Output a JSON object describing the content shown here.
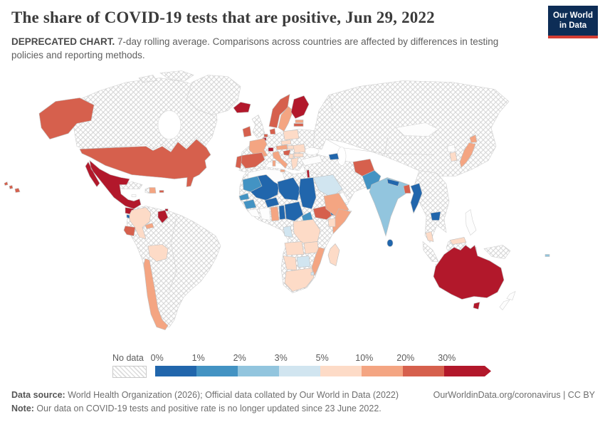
{
  "header": {
    "title": "The share of COVID-19 tests that are positive, Jun 29, 2022",
    "subtitle_bold": "DEPRECATED CHART.",
    "subtitle_rest": " 7-day rolling average. Comparisons across countries are affected by differences in testing policies and reporting methods.",
    "logo": {
      "line1": "Our World",
      "line2": "in Data"
    }
  },
  "legend": {
    "no_data_label": "No data",
    "ticks": [
      "0%",
      "1%",
      "2%",
      "3%",
      "5%",
      "10%",
      "20%",
      "30%"
    ],
    "colors": [
      "#2166ac",
      "#4393c3",
      "#92c5de",
      "#d1e5f0",
      "#fddbc7",
      "#f4a582",
      "#d6604d",
      "#b2182b"
    ]
  },
  "footer": {
    "source_bold": "Data source:",
    "source_rest": " World Health Organization (2026); Official data collated by Our World in Data (2022)",
    "link": "OurWorldinData.org/coronavirus | CC BY",
    "note_bold": "Note:",
    "note_rest": " Our data on COVID-19 tests and positive rate is no longer updated since 23 June 2022."
  },
  "chart_data": {
    "type": "choropleth-map",
    "title": "The share of COVID-19 tests that are positive",
    "date": "Jun 29, 2022",
    "unit": "share of tests positive, 7-day rolling average",
    "legend_position": "bottom",
    "no_data_style": "hatched",
    "buckets": [
      "0-1%",
      "1-2%",
      "2-3%",
      "3-5%",
      "5-10%",
      "10-20%",
      "20-30%",
      ">30%"
    ],
    "values": {
      "united-states": "20-30%",
      "mexico": ">30%",
      "guatemala": ">30%",
      "el-salvador": "0-1%",
      "costa-rica": "20-30%",
      "panama": "10-20%",
      "dominican-republic": "10-20%",
      "puerto-rico": "20-30%",
      "trinidad-and-tobago": ">30%",
      "guyana": ">30%",
      "colombia": "5-10%",
      "ecuador": "20-30%",
      "bolivia": "5-10%",
      "chile": "10-20%",
      "iceland": ">30%",
      "ireland": "20-30%",
      "norway": "20-30%",
      "sweden": "10-20%",
      "finland": ">30%",
      "denmark": "20-30%",
      "estonia": "10-20%",
      "latvia": "20-30%",
      "netherlands": "20-30%",
      "belgium": ">30%",
      "poland": "5-10%",
      "czechia": "5-10%",
      "france": "10-20%",
      "switzerland": ">30%",
      "austria": "10-20%",
      "italy": "10-20%",
      "croatia": "20-30%",
      "hungary": "5-10%",
      "romania": "5-10%",
      "bulgaria": "5-10%",
      "serbia": "5-10%",
      "greece": "5-10%",
      "spain": "20-30%",
      "portugal": "20-30%",
      "israel": ">30%",
      "saudi-arabia": "3-5%",
      "azerbaijan": "0-1%",
      "afghanistan": "20-30%",
      "pakistan": "1-2%",
      "india": "2-3%",
      "nepal": "0-1%",
      "bangladesh": "20-30%",
      "sri-lanka": "0-1%",
      "myanmar": "0-1%",
      "cambodia": "0-1%",
      "malaysia": "5-10%",
      "japan": "10-20%",
      "south-korea": "5-10%",
      "fiji": "2-3%",
      "australia": ">30%",
      "mauritania": "1-2%",
      "senegal": "1-2%",
      "guinea": "1-2%",
      "mali": "0-1%",
      "burkina-faso": "0-1%",
      "niger": "0-1%",
      "chad": "0-1%",
      "nigeria": "0-1%",
      "benin": "0-1%",
      "ghana": "10-20%",
      "cameroon": "1-2%",
      "central-african-republic": "20-30%",
      "south-sudan": "0-1%",
      "ethiopia": "10-20%",
      "somalia": "10-20%",
      "uganda": "5-10%",
      "gabon": "3-5%",
      "democratic-republic-of-congo": "5-10%",
      "angola": "5-10%",
      "zambia": "5-10%",
      "mozambique": "10-20%",
      "botswana": "3-5%",
      "namibia": "5-10%",
      "south-africa": "5-10%",
      "eswatini": "3-5%",
      "madagascar": "5-10%"
    }
  }
}
